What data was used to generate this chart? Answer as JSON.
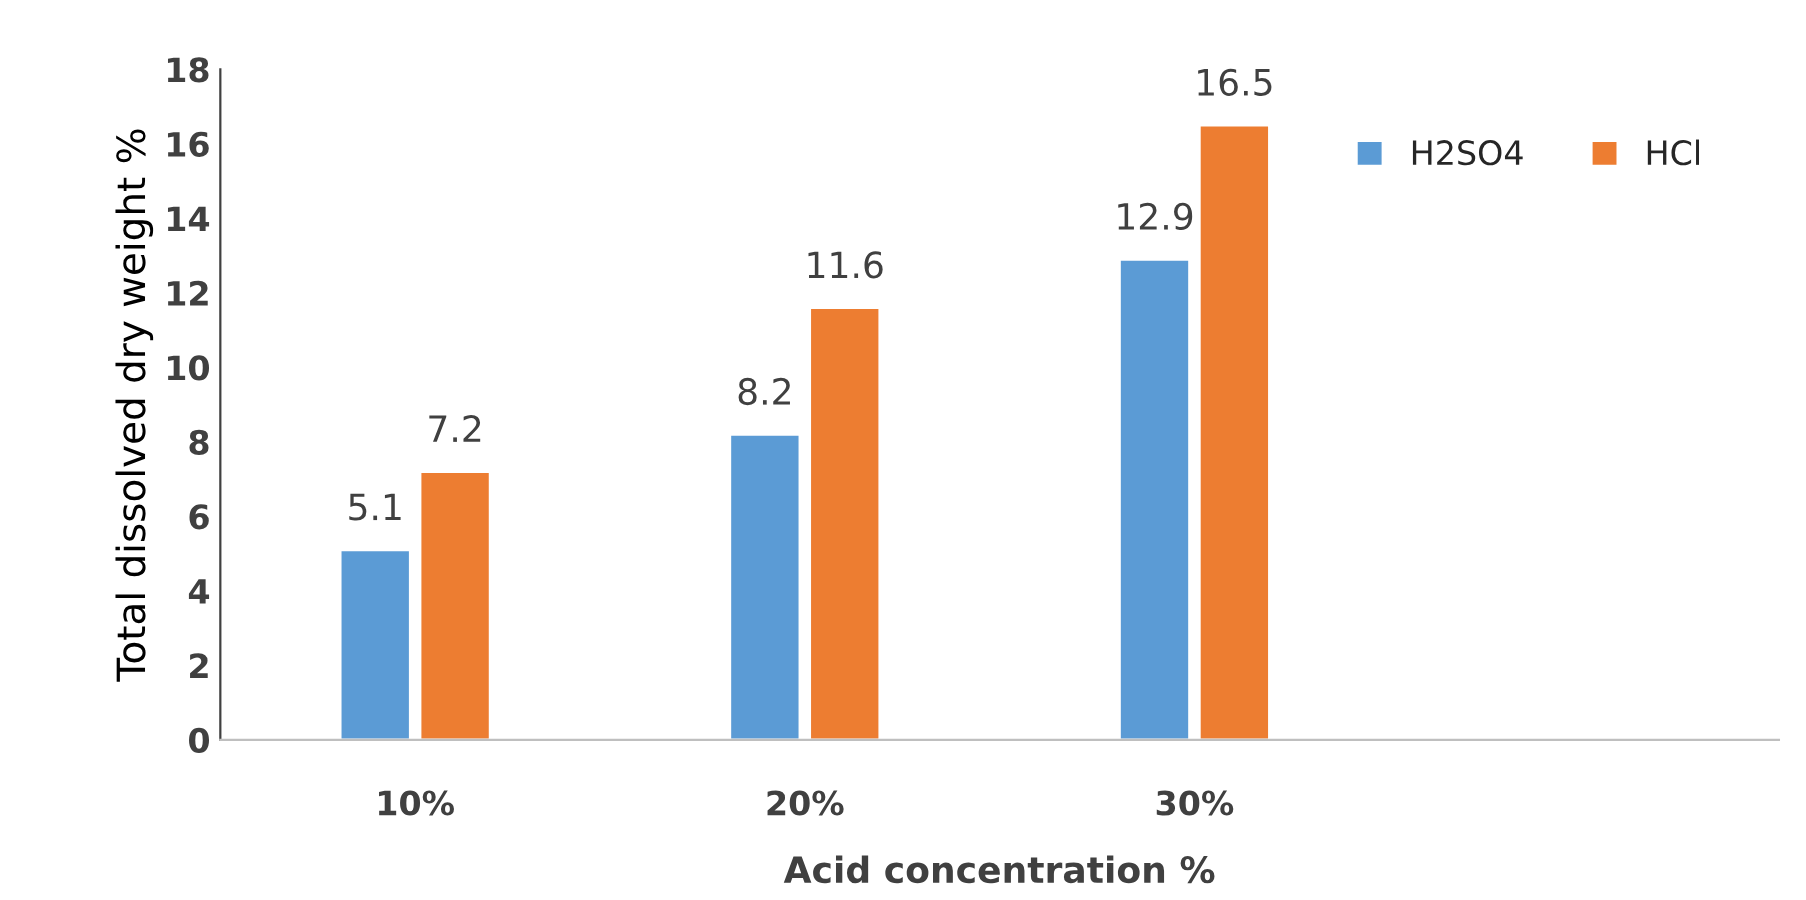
{
  "chart_data": {
    "type": "bar",
    "xlabel": "Acid concentration %",
    "ylabel": "Total dissolved dry weight %",
    "categories": [
      "10%",
      "20%",
      "30%",
      null
    ],
    "series": [
      {
        "name": "H2SO4",
        "color": "#5b9bd5",
        "values": [
          5.1,
          8.2,
          12.9,
          null
        ]
      },
      {
        "name": "HCl",
        "color": "#ed7d31",
        "values": [
          7.2,
          11.6,
          16.5,
          null
        ]
      }
    ],
    "ylim": [
      0,
      18
    ],
    "yticks": [
      0,
      2,
      4,
      6,
      8,
      10,
      12,
      14,
      16,
      18
    ],
    "data_labels": true,
    "grid": false,
    "legend": "top right"
  }
}
